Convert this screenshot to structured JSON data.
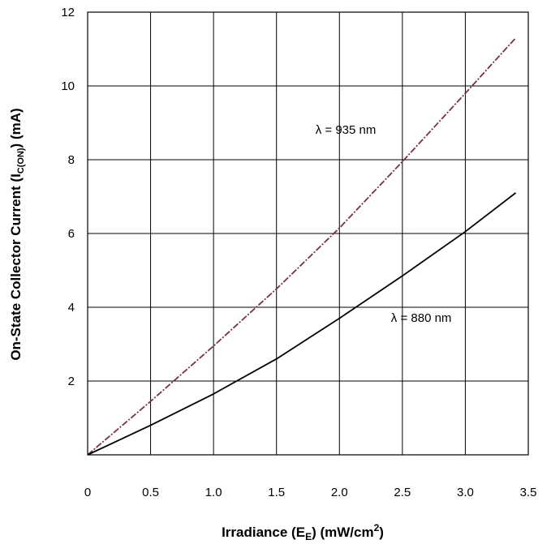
{
  "chart_data": {
    "type": "line",
    "xlabel": {
      "main": "Irradiance (E",
      "sub": "E",
      "rest": ") (mW/cm",
      "sup": "2",
      "end": ")"
    },
    "ylabel": {
      "main": "On-State Collector Current (I",
      "sub": "C(ON)",
      "rest": ") (mA)"
    },
    "xlim": [
      0,
      3.5
    ],
    "ylim": [
      0,
      12
    ],
    "xticks": [
      0,
      0.5,
      1.0,
      1.5,
      2.0,
      2.5,
      3.0,
      3.5
    ],
    "xtick_labels": [
      "0",
      "0.5",
      "1.0",
      "1.5",
      "2.0",
      "2.5",
      "3.0",
      "3.5"
    ],
    "yticks": [
      2,
      4,
      6,
      8,
      10,
      12
    ],
    "ytick_labels": [
      "2",
      "4",
      "6",
      "8",
      "10",
      "12"
    ],
    "grid": true,
    "series": [
      {
        "name": "λ = 935 nm",
        "color": "#7b2d52",
        "style": "dashed",
        "x": [
          0,
          0.5,
          1.0,
          1.5,
          2.0,
          2.5,
          3.0,
          3.4
        ],
        "y": [
          0,
          1.45,
          2.95,
          4.5,
          6.15,
          7.95,
          9.8,
          11.3
        ]
      },
      {
        "name": "λ = 880 nm",
        "color": "#000000",
        "style": "solid",
        "x": [
          0,
          0.5,
          1.0,
          1.5,
          2.0,
          2.5,
          3.0,
          3.4
        ],
        "y": [
          0,
          0.8,
          1.65,
          2.6,
          3.7,
          4.85,
          6.05,
          7.1
        ]
      }
    ],
    "annotations": [
      {
        "text": "λ = 935 nm",
        "x": 2.05,
        "y": 8.7,
        "series": 0
      },
      {
        "text": "λ = 880 nm",
        "x": 2.65,
        "y": 3.6,
        "series": 1
      }
    ]
  }
}
